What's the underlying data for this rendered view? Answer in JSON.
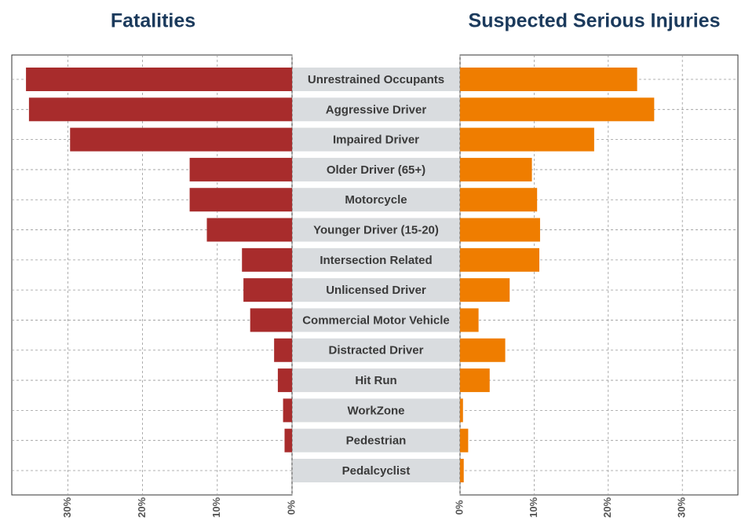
{
  "chart_data": {
    "type": "bar",
    "categories": [
      "Unrestrained Occupants",
      "Aggressive Driver",
      "Impaired Driver",
      "Older Driver (65+)",
      "Motorcycle",
      "Younger Driver (15-20)",
      "Intersection Related",
      "Unlicensed Driver",
      "Commercial Motor Vehicle",
      "Distracted Driver",
      "Hit Run",
      "WorkZone",
      "Pedestrian",
      "Pedalcyclist"
    ],
    "series": [
      {
        "name": "Fatalities",
        "color": "#a82c2c",
        "values": [
          35.6,
          35.2,
          29.7,
          13.7,
          13.7,
          11.4,
          6.7,
          6.5,
          5.6,
          2.4,
          1.9,
          1.2,
          1.0,
          0
        ]
      },
      {
        "name": "Suspected Serious Injuries",
        "color": "#ef7d00",
        "values": [
          23.9,
          26.2,
          18.1,
          9.7,
          10.4,
          10.8,
          10.7,
          6.7,
          2.5,
          6.1,
          4.0,
          0.4,
          1.1,
          0.5
        ]
      }
    ],
    "xlim": [
      0,
      37.5
    ],
    "xticks": [
      {
        "value": 0,
        "label": "0%"
      },
      {
        "value": 10,
        "label": "10%"
      },
      {
        "value": 20,
        "label": "20%"
      },
      {
        "value": 30,
        "label": "30%"
      }
    ],
    "grid": true
  }
}
